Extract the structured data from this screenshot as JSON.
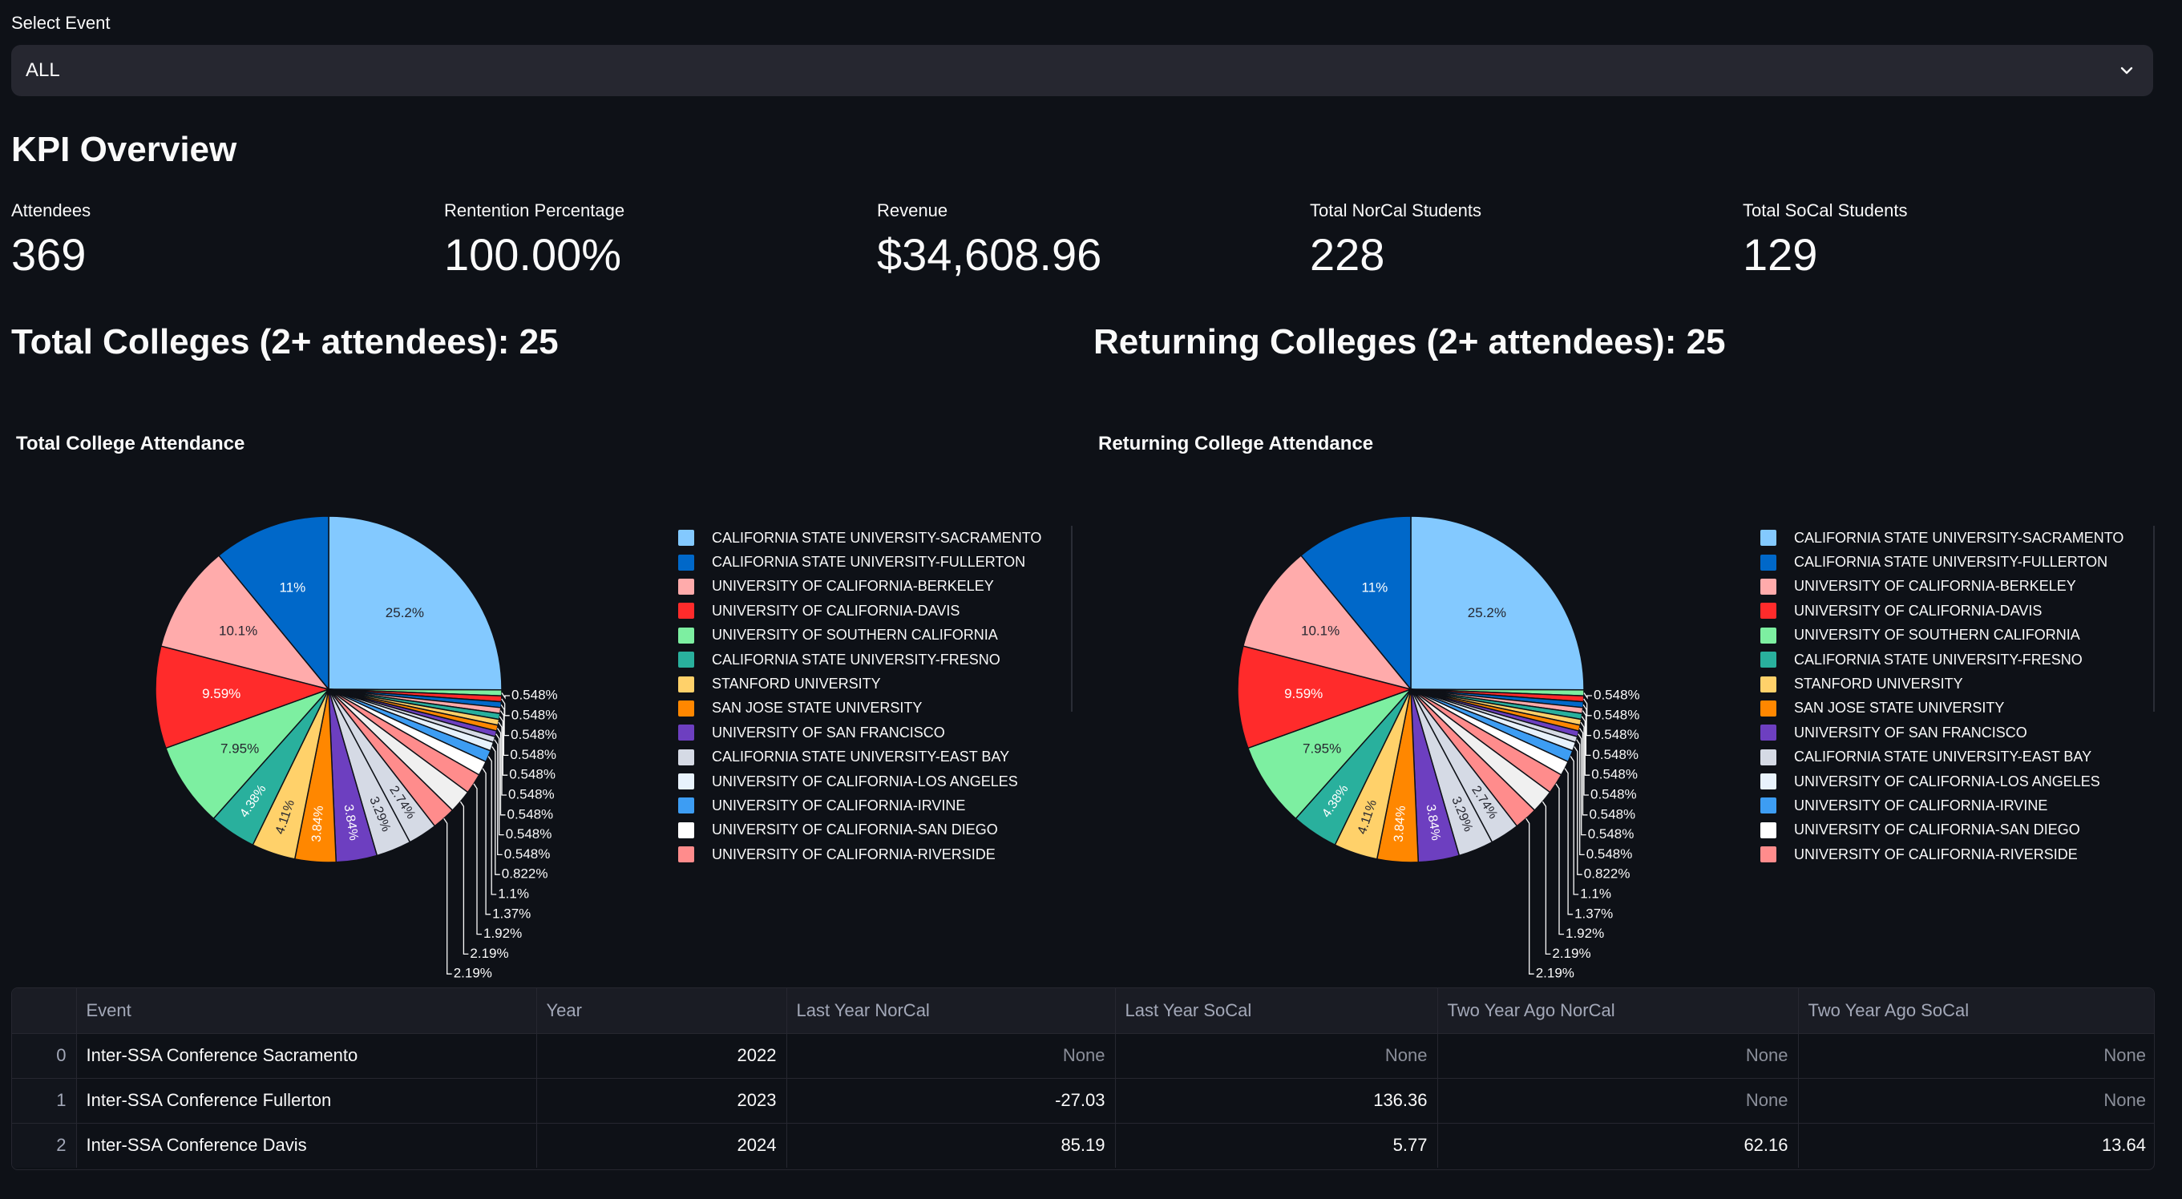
{
  "select": {
    "label": "Select Event",
    "value": "ALL"
  },
  "kpi": {
    "title": "KPI Overview",
    "metrics": [
      {
        "label": "Attendees",
        "value": "369"
      },
      {
        "label": "Rentention Percentage",
        "value": "100.00%"
      },
      {
        "label": "Revenue",
        "value": "$34,608.96"
      },
      {
        "label": "Total NorCal Students",
        "value": "228"
      },
      {
        "label": "Total SoCal Students",
        "value": "129"
      }
    ]
  },
  "headings": {
    "total": "Total Colleges (2+ attendees): 25",
    "returning": "Returning Colleges (2+ attendees): 25"
  },
  "chart_data": [
    {
      "type": "pie",
      "title": "Total College Attendance",
      "values": [
        25.2,
        0.548,
        0.548,
        0.548,
        0.548,
        0.548,
        0.548,
        0.548,
        0.548,
        0.548,
        0.822,
        1.1,
        1.37,
        1.92,
        2.19,
        2.19,
        2.74,
        3.29,
        3.84,
        3.84,
        4.11,
        4.38,
        7.95,
        9.59,
        10.1,
        11
      ],
      "labels": [
        "25.2%",
        "0.548%",
        "0.548%",
        "0.548%",
        "0.548%",
        "0.548%",
        "0.548%",
        "0.548%",
        "0.548%",
        "0.548%",
        "0.822%",
        "1.1%",
        "1.37%",
        "1.92%",
        "2.19%",
        "2.19%",
        "2.74%",
        "3.29%",
        "3.84%",
        "3.84%",
        "4.11%",
        "4.38%",
        "7.95%",
        "9.59%",
        "10.1%",
        "11%"
      ],
      "legend": [
        "CALIFORNIA STATE UNIVERSITY-SACRAMENTO",
        "CALIFORNIA STATE UNIVERSITY-FULLERTON",
        "UNIVERSITY OF CALIFORNIA-BERKELEY",
        "UNIVERSITY OF CALIFORNIA-DAVIS",
        "UNIVERSITY OF SOUTHERN CALIFORNIA",
        "CALIFORNIA STATE UNIVERSITY-FRESNO",
        "STANFORD UNIVERSITY",
        "SAN JOSE STATE UNIVERSITY",
        "UNIVERSITY OF SAN FRANCISCO",
        "CALIFORNIA STATE UNIVERSITY-EAST BAY",
        "UNIVERSITY OF CALIFORNIA-LOS ANGELES",
        "UNIVERSITY OF CALIFORNIA-IRVINE",
        "UNIVERSITY OF CALIFORNIA-SAN DIEGO",
        "UNIVERSITY OF CALIFORNIA-RIVERSIDE"
      ],
      "legend_placement": "right"
    },
    {
      "type": "pie",
      "title": "Returning College Attendance",
      "values": [
        25.2,
        0.548,
        0.548,
        0.548,
        0.548,
        0.548,
        0.548,
        0.548,
        0.548,
        0.548,
        0.822,
        1.1,
        1.37,
        1.92,
        2.19,
        2.19,
        2.74,
        3.29,
        3.84,
        3.84,
        4.11,
        4.38,
        7.95,
        9.59,
        10.1,
        11
      ],
      "labels": [
        "25.2%",
        "0.548%",
        "0.548%",
        "0.548%",
        "0.548%",
        "0.548%",
        "0.548%",
        "0.548%",
        "0.548%",
        "0.548%",
        "0.822%",
        "1.1%",
        "1.37%",
        "1.92%",
        "2.19%",
        "2.19%",
        "2.74%",
        "3.29%",
        "3.84%",
        "3.84%",
        "4.11%",
        "4.38%",
        "7.95%",
        "9.59%",
        "10.1%",
        "11%"
      ],
      "legend": [
        "CALIFORNIA STATE UNIVERSITY-SACRAMENTO",
        "CALIFORNIA STATE UNIVERSITY-FULLERTON",
        "UNIVERSITY OF CALIFORNIA-BERKELEY",
        "UNIVERSITY OF CALIFORNIA-DAVIS",
        "UNIVERSITY OF SOUTHERN CALIFORNIA",
        "CALIFORNIA STATE UNIVERSITY-FRESNO",
        "STANFORD UNIVERSITY",
        "SAN JOSE STATE UNIVERSITY",
        "UNIVERSITY OF SAN FRANCISCO",
        "CALIFORNIA STATE UNIVERSITY-EAST BAY",
        "UNIVERSITY OF CALIFORNIA-LOS ANGELES",
        "UNIVERSITY OF CALIFORNIA-IRVINE",
        "UNIVERSITY OF CALIFORNIA-SAN DIEGO",
        "UNIVERSITY OF CALIFORNIA-RIVERSIDE"
      ],
      "legend_placement": "right"
    }
  ],
  "slice_colors": [
    "#83c9ff",
    "#7defa1",
    "#ff2b2b",
    "#0068c9",
    "#ffabab",
    "#29b09d",
    "#ffd16a",
    "#ff8700",
    "#6d3fc0",
    "#d5dae5",
    "#e8f2fc",
    "#3d9df3",
    "#ffffff",
    "#ff8c8c",
    "#f0f0f0",
    "#ff8c8c",
    "#d5dae5",
    "#d5dae5",
    "#6d3fc0",
    "#ff8700",
    "#ffd16a",
    "#29b09d",
    "#7defa1",
    "#ff2b2b",
    "#ffabab",
    "#0068c9"
  ],
  "legend_colors": [
    "#83c9ff",
    "#0068c9",
    "#ffabab",
    "#ff2b2b",
    "#7defa1",
    "#29b09d",
    "#ffd16a",
    "#ff8700",
    "#6d3fc0",
    "#d5dae5",
    "#e8f2fc",
    "#3d9df3",
    "#ffffff",
    "#ff8c8c"
  ],
  "table": {
    "columns": [
      "",
      "Event",
      "Year",
      "Last Year NorCal",
      "Last Year SoCal",
      "Two Year Ago NorCal",
      "Two Year Ago SoCal"
    ],
    "rows": [
      [
        "0",
        "Inter-SSA Conference Sacramento",
        "2022",
        "None",
        "None",
        "None",
        "None"
      ],
      [
        "1",
        "Inter-SSA Conference Fullerton",
        "2023",
        "-27.03",
        "136.36",
        "None",
        "None"
      ],
      [
        "2",
        "Inter-SSA Conference Davis",
        "2024",
        "85.19",
        "5.77",
        "62.16",
        "13.64"
      ]
    ]
  }
}
